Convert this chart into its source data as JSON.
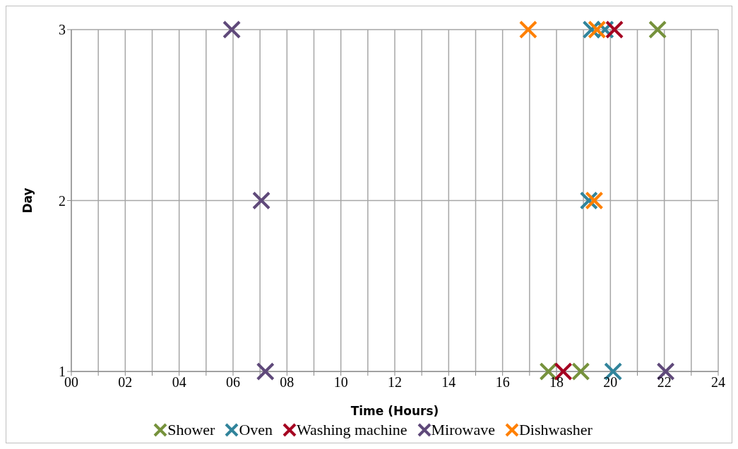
{
  "chart_data": {
    "type": "scatter",
    "xlabel": "Time (Hours)",
    "ylabel": "Day",
    "series": [
      {
        "name": "Shower",
        "color": "#76923c",
        "x": [
          21.75,
          17.7,
          18.9
        ],
        "values": [
          3,
          1,
          1
        ]
      },
      {
        "name": "Oven",
        "color": "#31849b",
        "x": [
          19.3,
          19.8,
          19.2,
          20.1
        ],
        "values": [
          3,
          3,
          2,
          1
        ]
      },
      {
        "name": "Washing machine",
        "color": "#a50021",
        "x": [
          20.15,
          18.25
        ],
        "values": [
          3,
          1
        ]
      },
      {
        "name": "Mirowave",
        "color": "#5f497a",
        "x": [
          5.95,
          7.05,
          7.2,
          22.05
        ],
        "values": [
          3,
          2,
          1,
          1
        ]
      },
      {
        "name": "Dishwasher",
        "color": "#ff8000",
        "x": [
          16.95,
          19.5,
          19.4
        ],
        "values": [
          3,
          3,
          2
        ]
      }
    ],
    "xlim": [
      0,
      24
    ],
    "xticks": [
      {
        "value": 0,
        "label": "00"
      },
      {
        "value": 1,
        "label": null
      },
      {
        "value": 2,
        "label": "02"
      },
      {
        "value": 3,
        "label": null
      },
      {
        "value": 4,
        "label": "04"
      },
      {
        "value": 5,
        "label": null
      },
      {
        "value": 6,
        "label": "06"
      },
      {
        "value": 7,
        "label": null
      },
      {
        "value": 8,
        "label": "08"
      },
      {
        "value": 9,
        "label": null
      },
      {
        "value": 10,
        "label": "10"
      },
      {
        "value": 11,
        "label": null
      },
      {
        "value": 12,
        "label": "12"
      },
      {
        "value": 13,
        "label": null
      },
      {
        "value": 14,
        "label": "14"
      },
      {
        "value": 15,
        "label": null
      },
      {
        "value": 16,
        "label": "16"
      },
      {
        "value": 17,
        "label": null
      },
      {
        "value": 18,
        "label": "18"
      },
      {
        "value": 19,
        "label": null
      },
      {
        "value": 20,
        "label": "20"
      },
      {
        "value": 21,
        "label": null
      },
      {
        "value": 22,
        "label": "22"
      },
      {
        "value": 23,
        "label": null
      },
      {
        "value": 24,
        "label": "24"
      }
    ],
    "ylim": [
      1,
      3
    ],
    "yticks": [
      1,
      2,
      3
    ],
    "grid": true,
    "legend": "bottom",
    "marker": "cross"
  }
}
